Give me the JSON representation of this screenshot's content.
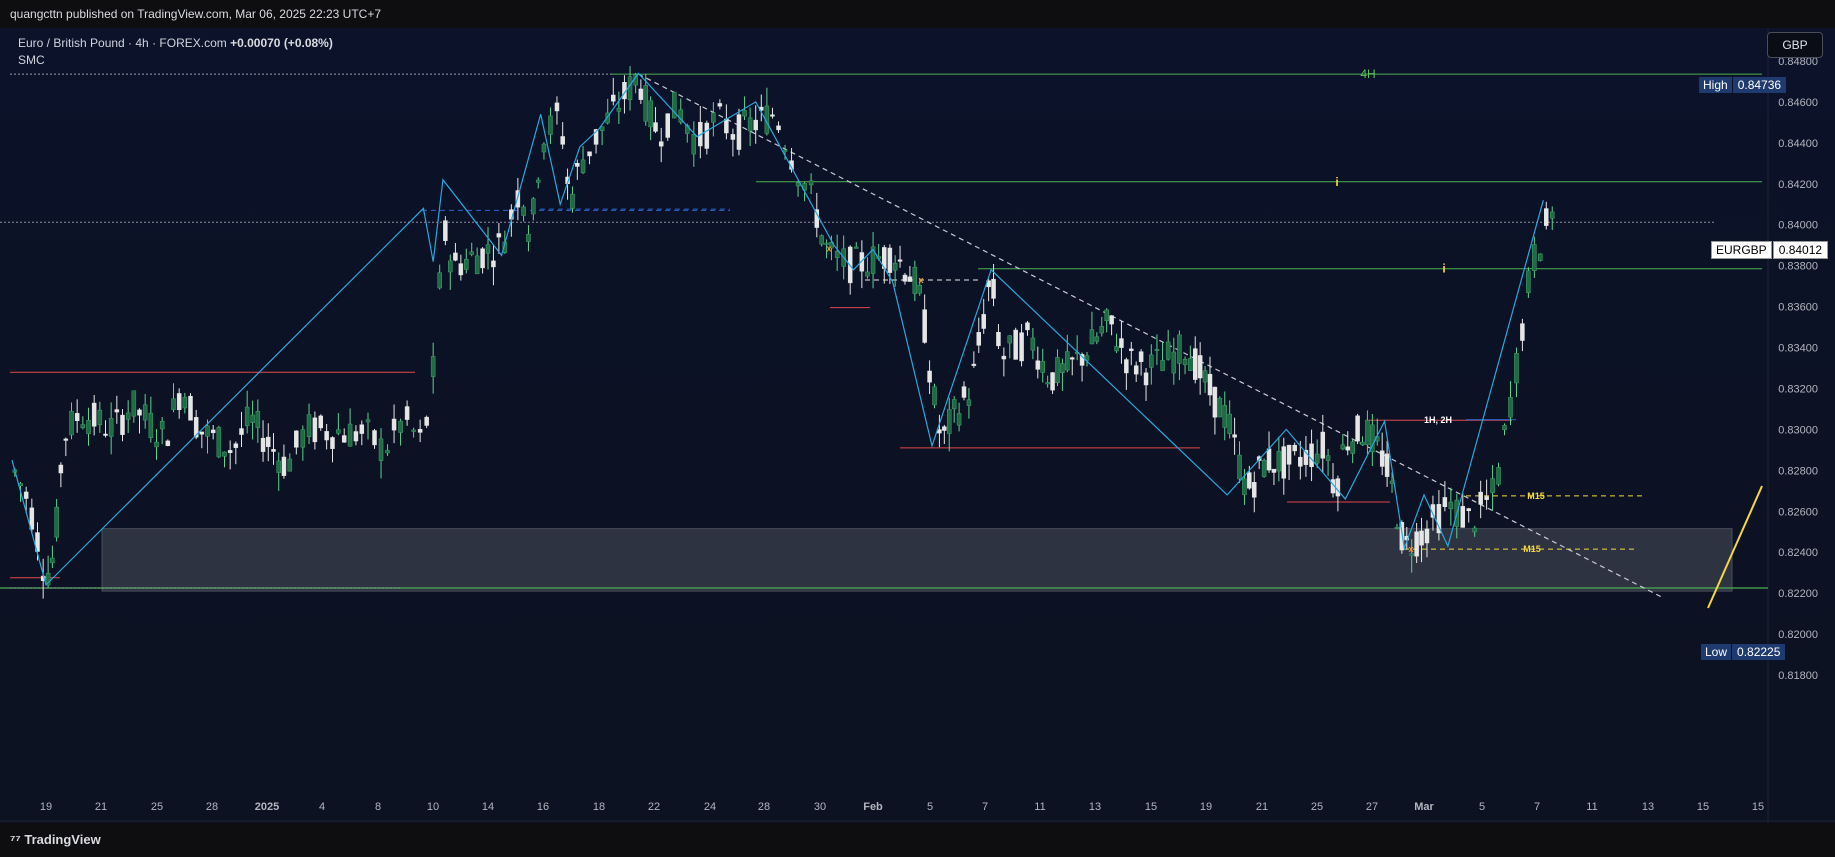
{
  "header": {
    "publisher_line": "quangcttn published on TradingView.com, Mar 06, 2025 22:23 UTC+7"
  },
  "legend": {
    "symbol_line": "Euro / British Pound · 4h · FOREX.com",
    "change": "+0.00070 (+0.08%)",
    "indicator": "SMC"
  },
  "currency_button": "GBP",
  "footer": {
    "logo_text": "TradingView"
  },
  "price_tags": {
    "high_label": "High",
    "high_value": "0.84736",
    "symbol_label": "EURGBP",
    "symbol_value": "0.84012",
    "low_label": "Low",
    "low_value": "0.82225"
  },
  "annotations": {
    "h4": "4H",
    "i1": "i",
    "i2": "i",
    "h1h2": "1H, 2H",
    "m15a": "M15",
    "m15b": "M15",
    "x1": "x",
    "x2": "x",
    "x3": "x"
  },
  "colors": {
    "background": "#0c1222",
    "up_candle": "#1f6b45",
    "down_candle": "#e6e6e6",
    "zigzag": "#2aa7d8",
    "level_red": "#e0474c",
    "level_green": "#4caf50",
    "trendline": "#c8cbd2",
    "yellow": "#f5d742",
    "zone": "#3a3f4c"
  },
  "chart_data": {
    "type": "candlestick",
    "symbol": "EURGBP",
    "timeframe": "4h",
    "y_ticks": [
      "0.84800",
      "0.84600",
      "0.84400",
      "0.84200",
      "0.84000",
      "0.83800",
      "0.83600",
      "0.83400",
      "0.83200",
      "0.83000",
      "0.82800",
      "0.82600",
      "0.82400",
      "0.82200",
      "0.82000",
      "0.81800"
    ],
    "ylim": [
      0.8168,
      0.8487
    ],
    "x_ticks": [
      "19",
      "21",
      "25",
      "28",
      "2025",
      "4",
      "8",
      "10",
      "14",
      "16",
      "18",
      "22",
      "24",
      "28",
      "30",
      "Feb",
      "5",
      "7",
      "11",
      "13",
      "15",
      "19",
      "21",
      "25",
      "27",
      "Mar",
      "5",
      "7",
      "11",
      "13",
      "15",
      "15"
    ],
    "x_tick_dates": [
      "2024-12-19",
      "2024-12-21",
      "2024-12-25",
      "2024-12-28",
      "2025-01-01",
      "2025-01-04",
      "2025-01-08",
      "2025-01-10",
      "2025-01-14",
      "2025-01-16",
      "2025-01-18",
      "2025-01-22",
      "2025-01-24",
      "2025-01-28",
      "2025-01-30",
      "2025-02-01",
      "2025-02-05",
      "2025-02-07",
      "2025-02-11",
      "2025-02-13",
      "2025-02-15",
      "2025-02-19",
      "2025-02-21",
      "2025-02-25",
      "2025-02-27",
      "2025-03-01",
      "2025-03-05",
      "2025-03-07",
      "2025-03-11",
      "2025-03-13",
      "2025-03-15",
      "2025-03-15"
    ],
    "price_path": [
      [
        "2024-12-17",
        0.8282
      ],
      [
        "2024-12-18",
        0.8265
      ],
      [
        "2024-12-19",
        0.8228
      ],
      [
        "2024-12-19T12",
        0.8239
      ],
      [
        "2024-12-20",
        0.8296
      ],
      [
        "2024-12-21",
        0.8308
      ],
      [
        "2024-12-23",
        0.83
      ],
      [
        "2024-12-24",
        0.8312
      ],
      [
        "2024-12-26",
        0.8296
      ],
      [
        "2024-12-27",
        0.8322
      ],
      [
        "2024-12-28",
        0.83
      ],
      [
        "2024-12-30",
        0.829
      ],
      [
        "2024-12-31",
        0.8305
      ],
      [
        "2025-01-02",
        0.8282
      ],
      [
        "2025-01-03",
        0.83
      ],
      [
        "2025-01-06",
        0.8298
      ],
      [
        "2025-01-07",
        0.829
      ],
      [
        "2025-01-08",
        0.8305
      ],
      [
        "2025-01-09",
        0.8292
      ],
      [
        "2025-01-09T16",
        0.834
      ],
      [
        "2025-01-10",
        0.84
      ],
      [
        "2025-01-10T12",
        0.838
      ],
      [
        "2025-01-13",
        0.839
      ],
      [
        "2025-01-14",
        0.842
      ],
      [
        "2025-01-14T12",
        0.8393
      ],
      [
        "2025-01-15",
        0.844
      ],
      [
        "2025-01-16",
        0.8455
      ],
      [
        "2025-01-16T12",
        0.841
      ],
      [
        "2025-01-17",
        0.843
      ],
      [
        "2025-01-18",
        0.8445
      ],
      [
        "2025-01-20",
        0.8473
      ],
      [
        "2025-01-20T12",
        0.8455
      ],
      [
        "2025-01-21",
        0.8445
      ],
      [
        "2025-01-22",
        0.8458
      ],
      [
        "2025-01-23",
        0.844
      ],
      [
        "2025-01-24",
        0.8452
      ],
      [
        "2025-01-25",
        0.8445
      ],
      [
        "2025-01-27",
        0.8455
      ],
      [
        "2025-01-28",
        0.843
      ],
      [
        "2025-01-29",
        0.841
      ],
      [
        "2025-01-29T12",
        0.839
      ],
      [
        "2025-01-30",
        0.8383
      ],
      [
        "2025-01-31",
        0.838
      ],
      [
        "2025-02-02",
        0.8386
      ],
      [
        "2025-02-03",
        0.8375
      ],
      [
        "2025-02-03T12",
        0.836
      ],
      [
        "2025-02-04",
        0.832
      ],
      [
        "2025-02-04T12",
        0.8293
      ],
      [
        "2025-02-05",
        0.8305
      ],
      [
        "2025-02-06",
        0.832
      ],
      [
        "2025-02-07",
        0.8376
      ],
      [
        "2025-02-07T12",
        0.8335
      ],
      [
        "2025-02-09",
        0.8345
      ],
      [
        "2025-02-10",
        0.8325
      ],
      [
        "2025-02-11",
        0.833
      ],
      [
        "2025-02-12",
        0.834
      ],
      [
        "2025-02-13",
        0.8352
      ],
      [
        "2025-02-14",
        0.8333
      ],
      [
        "2025-02-15",
        0.833
      ],
      [
        "2025-02-17",
        0.834
      ],
      [
        "2025-02-18",
        0.832
      ],
      [
        "2025-02-19",
        0.8305
      ],
      [
        "2025-02-20",
        0.827
      ],
      [
        "2025-02-21",
        0.8285
      ],
      [
        "2025-02-22",
        0.8283
      ],
      [
        "2025-02-24",
        0.8292
      ],
      [
        "2025-02-24T12",
        0.827
      ],
      [
        "2025-02-25",
        0.8295
      ],
      [
        "2025-02-26",
        0.83
      ],
      [
        "2025-02-27",
        0.8285
      ],
      [
        "2025-02-27T12",
        0.8265
      ],
      [
        "2025-02-28",
        0.8242
      ],
      [
        "2025-03-01",
        0.825
      ],
      [
        "2025-03-02",
        0.8263
      ],
      [
        "2025-03-03",
        0.8255
      ],
      [
        "2025-03-04",
        0.827
      ],
      [
        "2025-03-04T12",
        0.8305
      ],
      [
        "2025-03-05",
        0.834
      ],
      [
        "2025-03-05T12",
        0.838
      ],
      [
        "2025-03-06",
        0.8395
      ],
      [
        "2025-03-06T12",
        0.8412
      ]
    ],
    "series": [
      {
        "name": "EURGBP"
      },
      {
        "name": "zigzag",
        "points": [
          [
            "2024-12-17",
            0.8285
          ],
          [
            "2024-12-19",
            0.8224
          ],
          [
            "2025-01-09",
            0.8408
          ],
          [
            "2025-01-09T12",
            0.8382
          ],
          [
            "2025-01-10",
            0.8422
          ],
          [
            "2025-01-13",
            0.8385
          ],
          [
            "2025-01-15",
            0.8454
          ],
          [
            "2025-01-16",
            0.841
          ],
          [
            "2025-01-17",
            0.8438
          ],
          [
            "2025-01-18",
            0.8447
          ],
          [
            "2025-01-20",
            0.8474
          ],
          [
            "2025-01-23",
            0.8443
          ],
          [
            "2025-01-26",
            0.846
          ],
          [
            "2025-01-30",
            0.839
          ],
          [
            "2025-01-31",
            0.8378
          ],
          [
            "2025-02-01",
            0.8388
          ],
          [
            "2025-02-02",
            0.8372
          ],
          [
            "2025-02-04",
            0.8292
          ],
          [
            "2025-02-07",
            0.8378
          ],
          [
            "2025-02-19",
            0.8268
          ],
          [
            "2025-02-22",
            0.83
          ],
          [
            "2025-02-25",
            0.8266
          ],
          [
            "2025-02-27",
            0.8304
          ],
          [
            "2025-02-28",
            0.8242
          ],
          [
            "2025-03-01",
            0.8268
          ],
          [
            "2025-03-02",
            0.8243
          ],
          [
            "2025-03-06",
            0.8412
          ]
        ]
      }
    ],
    "levels": [
      {
        "name": "4H",
        "price": 0.84736,
        "style": "solid",
        "color": "green"
      },
      {
        "name": "i-upper",
        "price": 0.8421,
        "style": "solid",
        "color": "green"
      },
      {
        "name": "i-lower",
        "price": 0.83785,
        "style": "solid",
        "color": "green"
      },
      {
        "name": "EURGBP-current",
        "price": 0.84012,
        "style": "dotted"
      },
      {
        "name": "1H, 2H",
        "price": 0.83045,
        "style": "solid",
        "color": "red"
      },
      {
        "name": "M15",
        "price": 0.82675,
        "style": "dashed",
        "color": "yellow"
      },
      {
        "name": "M15",
        "price": 0.82415,
        "style": "dashed",
        "color": "yellow"
      },
      {
        "name": "low-line",
        "price": 0.82225,
        "style": "solid",
        "color": "green"
      }
    ],
    "zone": {
      "top": 0.82515,
      "bottom": 0.8221
    },
    "trendline": [
      [
        "2025-01-20",
        0.84736
      ],
      [
        "2025-03-13",
        0.8218
      ]
    ]
  }
}
